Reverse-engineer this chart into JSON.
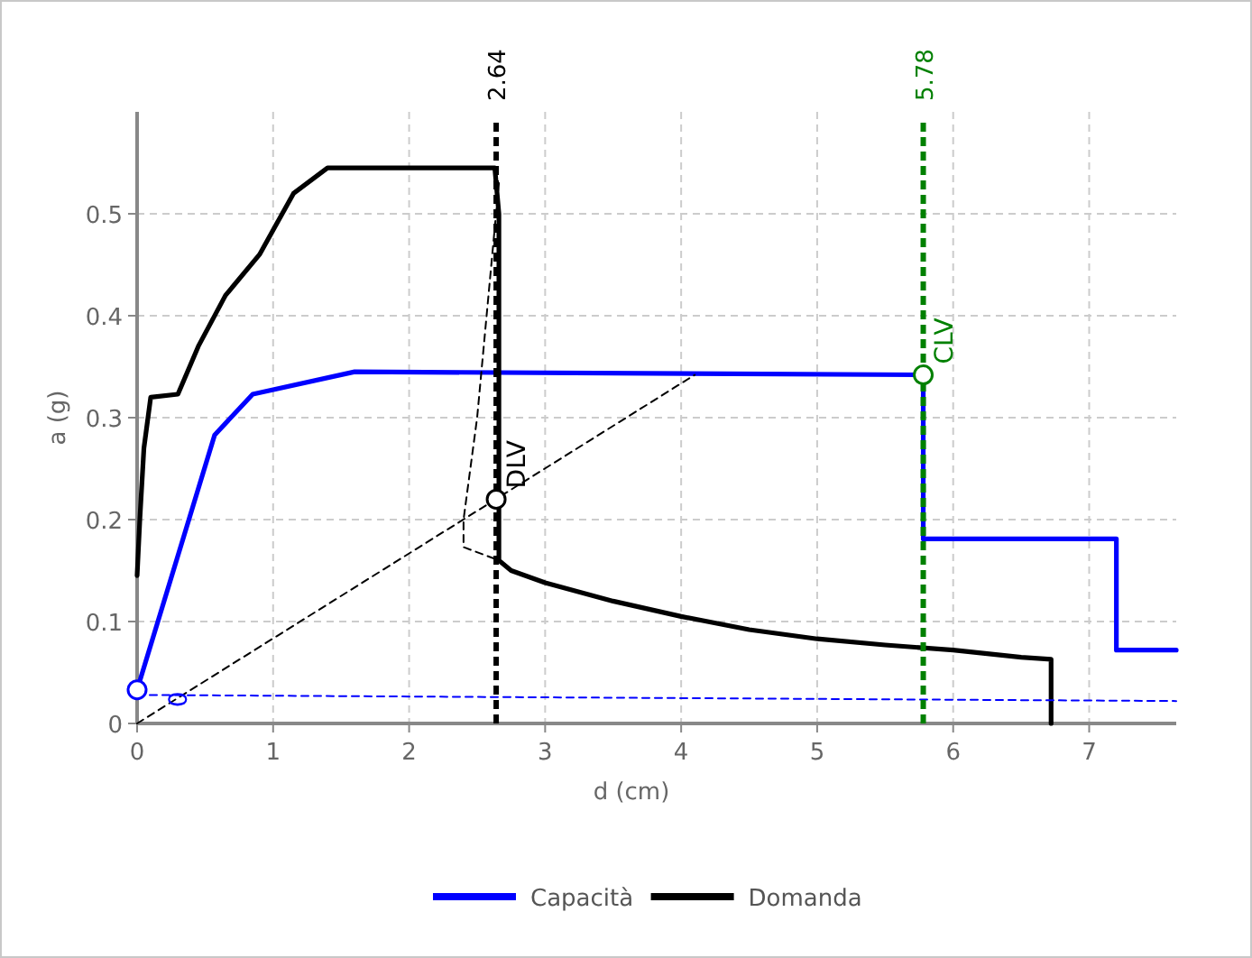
{
  "chart_data": {
    "type": "line",
    "xlabel": "d (cm)",
    "ylabel": "a (g)",
    "xlim": [
      0,
      7.64
    ],
    "ylim": [
      0,
      0.6
    ],
    "xticks": [
      0,
      1,
      2,
      3,
      4,
      5,
      6,
      7
    ],
    "yticks": [
      0,
      0.1,
      0.2,
      0.3,
      0.4,
      0.5
    ],
    "grid": true,
    "legend": "bottom",
    "series": [
      {
        "name": "Capacità",
        "color": "#0000ff",
        "line_style": "solid",
        "x": [
          0,
          0.57,
          0.85,
          1.6,
          5.78,
          5.78,
          7.2,
          7.2,
          7.64
        ],
        "values": [
          0.033,
          0.283,
          0.323,
          0.345,
          0.342,
          0.181,
          0.181,
          0.072,
          0.072
        ]
      },
      {
        "name": "Domanda",
        "color": "#000000",
        "line_style": "solid",
        "x": [
          0,
          0.02,
          0.05,
          0.1,
          0.3,
          0.45,
          0.65,
          0.9,
          1.15,
          1.4,
          2.63,
          2.66,
          2.66,
          2.75,
          3,
          3.5,
          4,
          4.5,
          5,
          5.5,
          6,
          6.5,
          6.72,
          6.72
        ],
        "values": [
          0.145,
          0.2,
          0.27,
          0.32,
          0.323,
          0.37,
          0.42,
          0.46,
          0.52,
          0.545,
          0.545,
          0.5,
          0.16,
          0.15,
          0.138,
          0.12,
          0.105,
          0.092,
          0.083,
          0.077,
          0.072,
          0.065,
          0.063,
          0
        ]
      },
      {
        "type": "line",
        "color": "#000000",
        "line_style": "dashed",
        "x": [
          0,
          4.1
        ],
        "values": [
          0,
          0.342
        ]
      },
      {
        "type": "line",
        "color": "#000000",
        "line_style": "dashed",
        "x": [
          2.66,
          2.5,
          2.4,
          2.4,
          2.66
        ],
        "values": [
          0.53,
          0.3,
          0.2,
          0.173,
          0.16
        ]
      },
      {
        "type": "line",
        "color": "#0000ff",
        "line_style": "dashed",
        "x": [
          0,
          7.64
        ],
        "values": [
          0.028,
          0.022
        ]
      },
      {
        "type": "scatter",
        "color": "#0000ff",
        "marker": "circle",
        "x": [
          0
        ],
        "values": [
          0.033
        ]
      },
      {
        "type": "scatter",
        "color": "#000000",
        "marker": "circle",
        "x": [
          2.64
        ],
        "values": [
          0.22
        ]
      },
      {
        "type": "scatter",
        "color": "#008000",
        "marker": "circle",
        "x": [
          5.78
        ],
        "values": [
          0.342
        ]
      }
    ],
    "annotations": [
      {
        "text": "0",
        "x": 0.15,
        "y": 0.005
      },
      {
        "text": "DLV",
        "x": 2.64,
        "y": 0.22
      },
      {
        "text": "CLV",
        "x": 5.78,
        "y": 0.342
      }
    ],
    "ref_lines": [
      {
        "axis": "x",
        "value": 2.64,
        "label": "2.64",
        "color": "#000000",
        "line_style": "dashed"
      },
      {
        "axis": "x",
        "value": 5.78,
        "label": "5.78",
        "color": "#008000",
        "line_style": "dashed"
      }
    ]
  }
}
